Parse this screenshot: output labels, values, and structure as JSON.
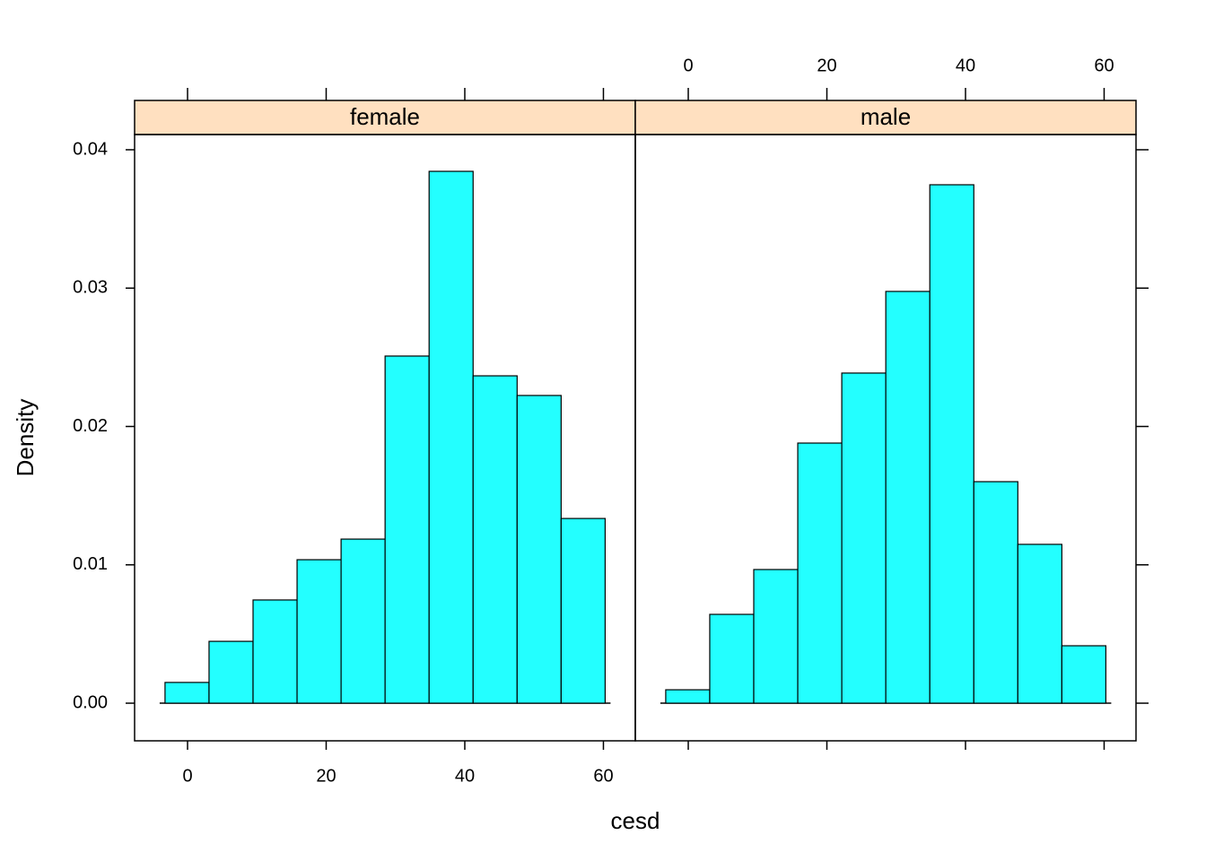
{
  "chart_data": {
    "type": "histogram",
    "xlabel": "cesd",
    "ylabel": "Density",
    "color": "#23ffff",
    "strip_color": "#ffe0c0",
    "bins": [
      -3.25,
      3.1,
      9.45,
      15.8,
      22.15,
      28.5,
      34.85,
      41.2,
      47.55,
      53.9,
      60.25
    ],
    "panels": [
      {
        "name": "female",
        "values": [
          0.0015,
          0.00447,
          0.00746,
          0.01037,
          0.01186,
          0.02509,
          0.03844,
          0.02366,
          0.02224,
          0.01335
        ]
      },
      {
        "name": "male",
        "values": [
          0.00097,
          0.00642,
          0.00966,
          0.0188,
          0.02386,
          0.02976,
          0.03747,
          0.01601,
          0.01148,
          0.00415
        ]
      }
    ],
    "xlim": [
      -7.64,
      64.6
    ],
    "xticks": [
      0,
      20,
      40,
      60
    ],
    "ylim": [
      -0.00272,
      0.0411
    ],
    "yticks": [
      {
        "value": 0,
        "label": "0.00"
      },
      0.01,
      0.02,
      0.03,
      0.04
    ]
  }
}
